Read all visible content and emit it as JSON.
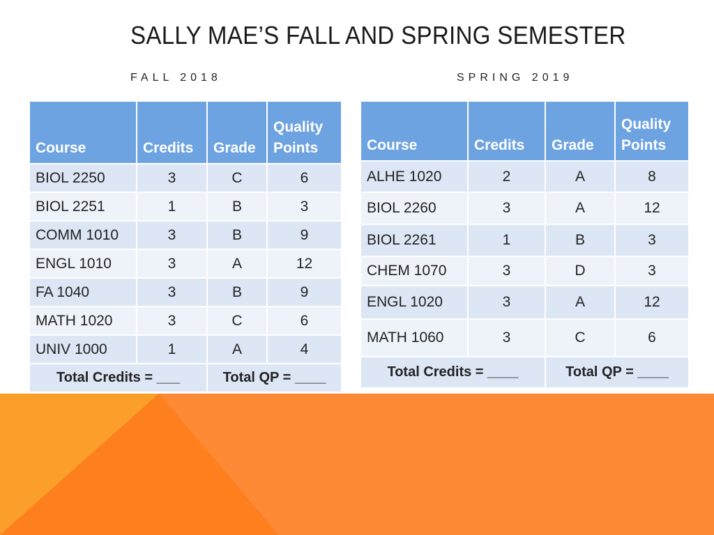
{
  "slide": {
    "title": "SALLY MAE’S FALL AND SPRING SEMESTER"
  },
  "fall": {
    "label": "FALL 2018",
    "headers": {
      "course": "Course",
      "credits": "Credits",
      "grade": "Grade",
      "quality_line1": "Quality",
      "quality_line2": "Points"
    },
    "rows": [
      {
        "course": "BIOL 2250",
        "credits": "3",
        "grade": "C",
        "qp": "6"
      },
      {
        "course": "BIOL 2251",
        "credits": "1",
        "grade": "B",
        "qp": "3"
      },
      {
        "course": "COMM 1010",
        "credits": "3",
        "grade": "B",
        "qp": "9"
      },
      {
        "course": "ENGL 1010",
        "credits": "3",
        "grade": "A",
        "qp": "12"
      },
      {
        "course": "FA 1040",
        "credits": "3",
        "grade": "B",
        "qp": "9"
      },
      {
        "course": "MATH 1020",
        "credits": "3",
        "grade": "C",
        "qp": "6"
      },
      {
        "course": "UNIV 1000",
        "credits": "1",
        "grade": "A",
        "qp": "4"
      }
    ],
    "total_credits": "Total Credits  = ___",
    "total_qp": "Total QP = ____"
  },
  "spring": {
    "label": "SPRING 2019",
    "headers": {
      "course": "Course",
      "credits": "Credits",
      "grade": "Grade",
      "quality_line1": "Quality",
      "quality_line2": "Points"
    },
    "rows": [
      {
        "course": "ALHE 1020",
        "credits": "2",
        "grade": "A",
        "qp": "8"
      },
      {
        "course": "BIOL 2260",
        "credits": "3",
        "grade": "A",
        "qp": "12"
      },
      {
        "course": "BIOL 2261",
        "credits": "1",
        "grade": "B",
        "qp": "3"
      },
      {
        "course": "CHEM 1070",
        "credits": "3",
        "grade": "D",
        "qp": "3"
      },
      {
        "course": "ENGL 1020",
        "credits": "3",
        "grade": "A",
        "qp": "12"
      },
      {
        "course": "MATH 1060",
        "credits": "3",
        "grade": "C",
        "qp": "6"
      }
    ],
    "total_credits": "Total Credits = ____",
    "total_qp": "Total QP = ____"
  },
  "colors": {
    "header_blue": "#6ea3e2",
    "row_dark": "#dce6f4",
    "row_light": "#eef3fa",
    "orange_light": "#fb9f2a",
    "orange_mid": "#fe8a36",
    "orange_dark": "#fd7f1e"
  }
}
